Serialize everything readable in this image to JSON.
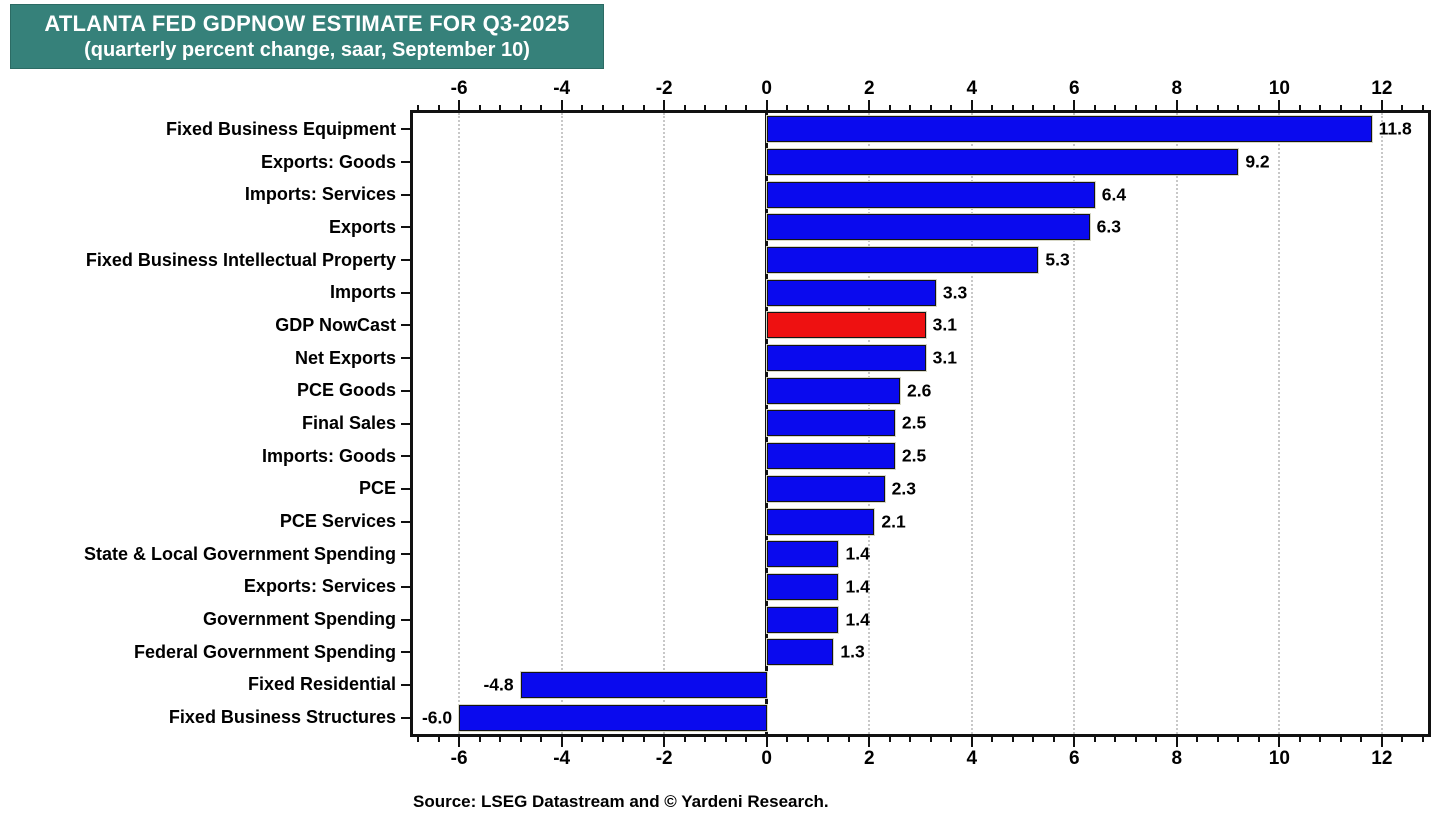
{
  "title": {
    "line1": "ATLANTA FED GDPNOW ESTIMATE FOR Q3-2025",
    "line2": "(quarterly percent change, saar, September 10)"
  },
  "source": {
    "text": "Source: LSEG Datastream and © Yardeni Research."
  },
  "colors": {
    "title_bg": "#36817A",
    "title_fg": "#FFFFFF",
    "bar": "#0A0AEE",
    "highlight": "#EE1111",
    "grid": "#C8C8C8",
    "axis": "#111111"
  },
  "chart_data": {
    "type": "bar",
    "orientation": "horizontal",
    "title": "ATLANTA FED GDPNOW ESTIMATE FOR Q3-2025 (quarterly percent change, saar, September 10)",
    "categories": [
      "Fixed Business Equipment",
      "Exports: Goods",
      "Imports: Services",
      "Exports",
      "Fixed Business Intellectual Property",
      "Imports",
      "GDP NowCast",
      "Net Exports",
      "PCE Goods",
      "Final Sales",
      "Imports: Goods",
      "PCE",
      "PCE Services",
      "State & Local Government Spending",
      "Exports: Services",
      "Government Spending",
      "Federal Government Spending",
      "Fixed Residential",
      "Fixed Business Structures"
    ],
    "values": [
      11.8,
      9.2,
      6.4,
      6.3,
      5.3,
      3.3,
      3.1,
      3.1,
      2.6,
      2.5,
      2.5,
      2.3,
      2.1,
      1.4,
      1.4,
      1.4,
      1.3,
      -4.8,
      -6.0
    ],
    "value_labels": [
      "11.8",
      "9.2",
      "6.4",
      "6.3",
      "5.3",
      "3.3",
      "3.1",
      "3.1",
      "2.6",
      "2.5",
      "2.5",
      "2.3",
      "2.1",
      "1.4",
      "1.4",
      "1.4",
      "1.3",
      "-4.8",
      "-6.0"
    ],
    "highlight": {
      "index": 6,
      "category": "GDP NowCast",
      "color": "#EE1111"
    },
    "bar_color": "#0A0AEE",
    "xlim": [
      -6.9,
      12.9
    ],
    "x_major_ticks": [
      -6,
      -4,
      -2,
      0,
      2,
      4,
      6,
      8,
      10,
      12
    ],
    "x_minor_step": 0.4,
    "xlabel": "",
    "ylabel": "",
    "grid": "vertical dotted gridlines at major ticks; solid black zero line",
    "legend": "none",
    "tick_labels_position": "top and bottom"
  }
}
